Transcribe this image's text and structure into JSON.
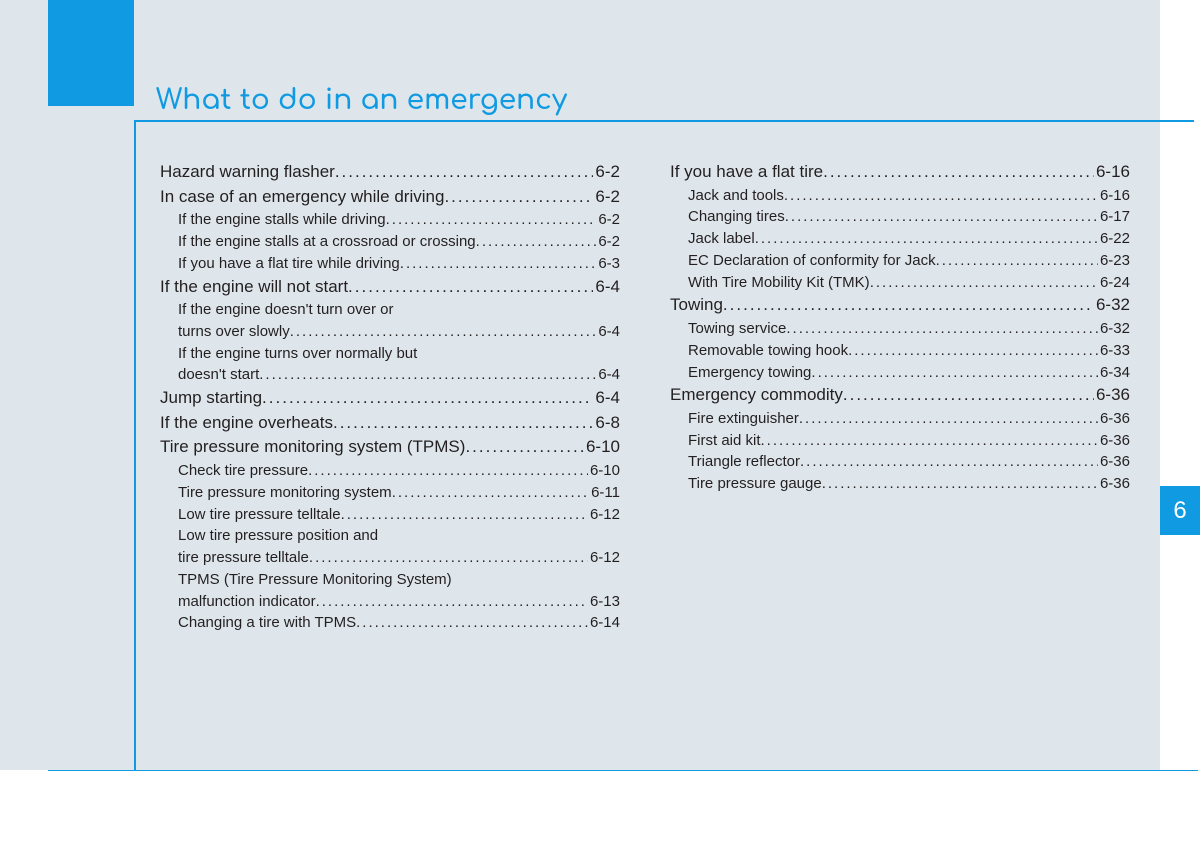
{
  "title": "What to do in an emergency",
  "chapter": "6",
  "colors": {
    "accent": "#109ae1",
    "page_bg": "#dee6ec",
    "text": "#231f20"
  },
  "left_column": [
    {
      "level": "main",
      "label": "Hazard warning flasher",
      "page": "6-2"
    },
    {
      "level": "main",
      "label": "In case of an emergency while driving",
      "page": "6-2"
    },
    {
      "level": "sub",
      "label": "If the engine stalls while driving",
      "page": "6-2"
    },
    {
      "level": "sub",
      "label": "If the engine stalls at a crossroad or crossing",
      "page": "6-2"
    },
    {
      "level": "sub",
      "label": "If you have a flat tire while driving",
      "page": "6-3"
    },
    {
      "level": "main",
      "label": "If the engine will not start",
      "page": "6-4"
    },
    {
      "level": "sub",
      "label": "If the engine doesn't turn over or",
      "cont": true
    },
    {
      "level": "sub",
      "label": "turns over slowly",
      "page": "6-4"
    },
    {
      "level": "sub",
      "label": "If the engine turns over normally but",
      "cont": true
    },
    {
      "level": "sub",
      "label": "doesn't start",
      "page": "6-4"
    },
    {
      "level": "main",
      "label": "Jump starting",
      "page": "6-4"
    },
    {
      "level": "main",
      "label": "If the engine overheats",
      "page": "6-8"
    },
    {
      "level": "main",
      "label": "Tire pressure monitoring system (TPMS)",
      "page": "6-10"
    },
    {
      "level": "sub",
      "label": "Check tire pressure",
      "page": "6-10"
    },
    {
      "level": "sub",
      "label": "Tire pressure monitoring system",
      "page": "6-11"
    },
    {
      "level": "sub",
      "label": "Low tire pressure telltale",
      "page": "6-12"
    },
    {
      "level": "sub",
      "label": "Low tire pressure position and",
      "cont": true
    },
    {
      "level": "sub",
      "label": "tire pressure telltale",
      "page": "6-12"
    },
    {
      "level": "sub",
      "label": "TPMS (Tire Pressure Monitoring System)",
      "cont": true
    },
    {
      "level": "sub",
      "label": "malfunction indicator",
      "page": "6-13"
    },
    {
      "level": "sub",
      "label": "Changing a tire with TPMS",
      "page": "6-14"
    }
  ],
  "right_column": [
    {
      "level": "main",
      "label": "If you have a flat tire",
      "page": "6-16"
    },
    {
      "level": "sub",
      "label": "Jack and tools",
      "page": "6-16"
    },
    {
      "level": "sub",
      "label": "Changing tires",
      "page": "6-17"
    },
    {
      "level": "sub",
      "label": "Jack label",
      "page": "6-22"
    },
    {
      "level": "sub",
      "label": "EC Declaration of conformity for Jack",
      "page": "6-23"
    },
    {
      "level": "sub",
      "label": "With Tire Mobility Kit (TMK)",
      "page": "6-24"
    },
    {
      "level": "main",
      "label": "Towing",
      "page": "6-32"
    },
    {
      "level": "sub",
      "label": "Towing service",
      "page": "6-32"
    },
    {
      "level": "sub",
      "label": "Removable towing hook",
      "page": "6-33"
    },
    {
      "level": "sub",
      "label": "Emergency towing",
      "page": "6-34"
    },
    {
      "level": "main",
      "label": "Emergency commodity",
      "page": "6-36"
    },
    {
      "level": "sub",
      "label": "Fire extinguisher",
      "page": "6-36"
    },
    {
      "level": "sub",
      "label": "First aid kit",
      "page": "6-36"
    },
    {
      "level": "sub",
      "label": "Triangle reflector",
      "page": "6-36"
    },
    {
      "level": "sub",
      "label": "Tire pressure gauge",
      "page": "6-36"
    }
  ]
}
